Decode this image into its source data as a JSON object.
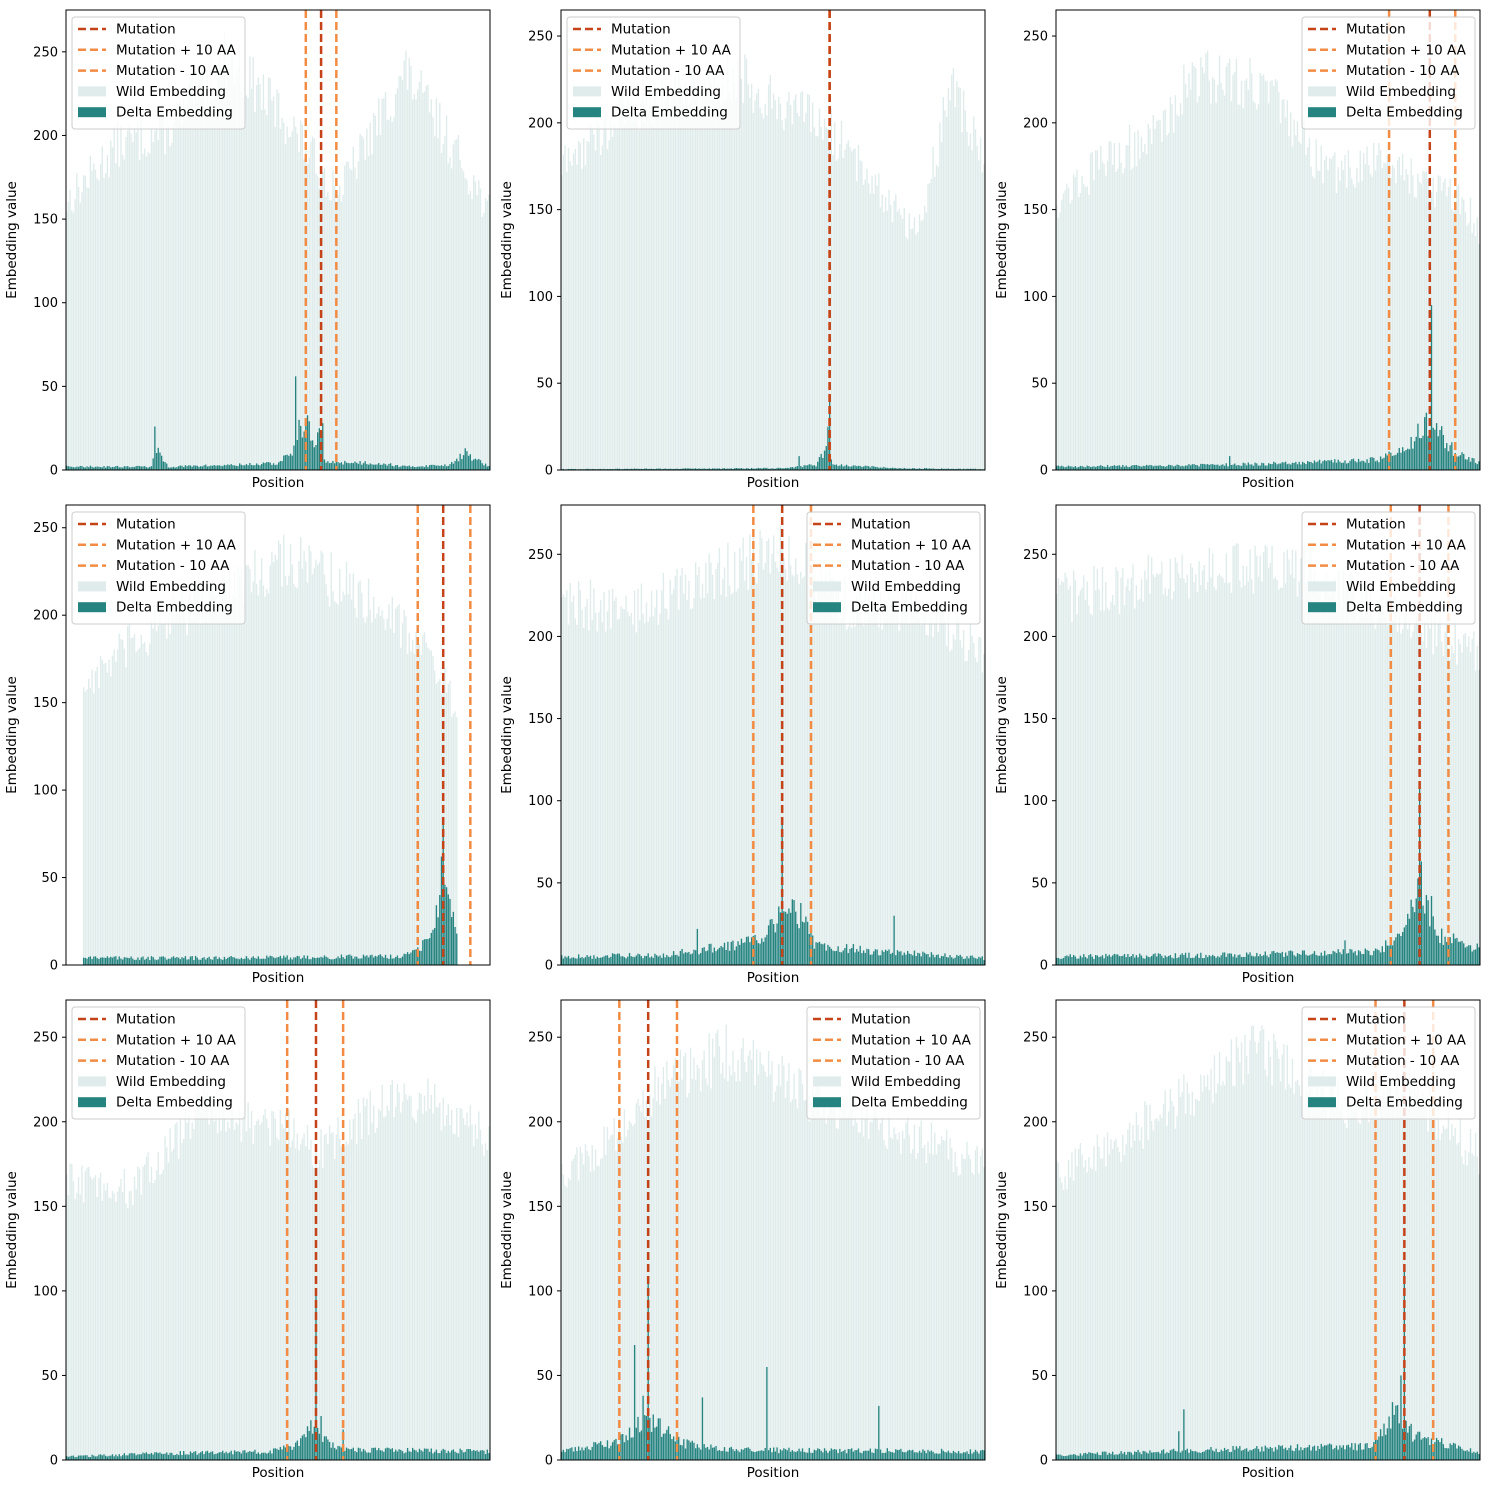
{
  "colors": {
    "wild": "#dfeceb",
    "delta": "#258380",
    "mutation": "#c44319",
    "window": "#f28c44",
    "axis": "#000000"
  },
  "chart_data": [
    {
      "type": "bar",
      "n_positions": 250,
      "xlabel": "Position",
      "ylabel": "Embedding value",
      "ylim": [
        0,
        275
      ],
      "yticks": [
        0,
        50,
        100,
        150,
        200,
        250
      ],
      "legend_position": "top-left",
      "mutation": 150,
      "window": [
        141,
        159
      ],
      "wild_profile": [
        [
          0,
          165
        ],
        [
          30,
          200
        ],
        [
          60,
          210
        ],
        [
          95,
          255
        ],
        [
          130,
          215
        ],
        [
          160,
          170
        ],
        [
          200,
          245
        ],
        [
          230,
          195
        ],
        [
          249,
          160
        ]
      ],
      "delta_profile": [
        [
          0,
          2
        ],
        [
          50,
          2
        ],
        [
          53,
          12
        ],
        [
          60,
          2
        ],
        [
          100,
          3
        ],
        [
          125,
          4
        ],
        [
          137,
          15
        ],
        [
          140,
          32
        ],
        [
          146,
          14
        ],
        [
          150,
          22
        ],
        [
          152,
          5
        ],
        [
          185,
          4
        ],
        [
          200,
          2
        ],
        [
          225,
          3
        ],
        [
          235,
          10
        ],
        [
          249,
          2
        ]
      ],
      "delta_peaks": [
        [
          135,
          56
        ],
        [
          137,
          30
        ],
        [
          149,
          25
        ],
        [
          151,
          28
        ],
        [
          52,
          26
        ]
      ],
      "legend": [
        "Mutation",
        "Mutation + 10 AA",
        "Mutation - 10 AA",
        "Wild Embedding",
        "Delta Embedding"
      ]
    },
    {
      "type": "bar",
      "n_positions": 250,
      "xlabel": "Position",
      "ylabel": "Embedding value",
      "ylim": [
        0,
        265
      ],
      "yticks": [
        0,
        50,
        100,
        150,
        200,
        250
      ],
      "legend_position": "top-left",
      "mutation": 158,
      "window": [
        158,
        158
      ],
      "wild_profile": [
        [
          0,
          180
        ],
        [
          40,
          215
        ],
        [
          100,
          235
        ],
        [
          160,
          200
        ],
        [
          210,
          140
        ],
        [
          230,
          230
        ],
        [
          249,
          180
        ]
      ],
      "delta_profile": [
        [
          0,
          0.5
        ],
        [
          130,
          1
        ],
        [
          150,
          3
        ],
        [
          156,
          12
        ],
        [
          160,
          3
        ],
        [
          200,
          1
        ],
        [
          249,
          0.5
        ]
      ],
      "delta_peaks": [
        [
          158,
          40
        ],
        [
          157,
          25
        ],
        [
          140,
          8
        ]
      ],
      "legend": [
        "Mutation",
        "Mutation + 10 AA",
        "Mutation - 10 AA",
        "Wild Embedding",
        "Delta Embedding"
      ]
    },
    {
      "type": "bar",
      "n_positions": 250,
      "xlabel": "Position",
      "ylabel": "Embedding value",
      "ylim": [
        0,
        265
      ],
      "yticks": [
        0,
        50,
        100,
        150,
        200,
        250
      ],
      "legend_position": "top-right",
      "mutation": 220,
      "window": [
        196,
        235
      ],
      "wild_profile": [
        [
          0,
          160
        ],
        [
          30,
          185
        ],
        [
          60,
          200
        ],
        [
          80,
          235
        ],
        [
          120,
          230
        ],
        [
          160,
          175
        ],
        [
          195,
          185
        ],
        [
          225,
          165
        ],
        [
          240,
          160
        ],
        [
          249,
          140
        ]
      ],
      "delta_profile": [
        [
          0,
          2
        ],
        [
          100,
          3
        ],
        [
          140,
          4
        ],
        [
          190,
          6
        ],
        [
          205,
          12
        ],
        [
          220,
          28
        ],
        [
          235,
          10
        ],
        [
          249,
          4
        ]
      ],
      "delta_peaks": [
        [
          221,
          95
        ],
        [
          218,
          33
        ],
        [
          102,
          8
        ]
      ],
      "legend": [
        "Mutation",
        "Mutation + 10 AA",
        "Mutation - 10 AA",
        "Wild Embedding",
        "Delta Embedding"
      ]
    },
    {
      "type": "bar",
      "n_positions": 250,
      "xlabel": "Position",
      "ylabel": "Embedding value",
      "ylim": [
        0,
        263
      ],
      "yticks": [
        0,
        50,
        100,
        150,
        200,
        250
      ],
      "legend_position": "top-left",
      "mutation": 222,
      "window": [
        207,
        238
      ],
      "start": 10,
      "end": 230,
      "wild_profile": [
        [
          10,
          165
        ],
        [
          40,
          190
        ],
        [
          80,
          215
        ],
        [
          130,
          240
        ],
        [
          180,
          215
        ],
        [
          210,
          190
        ],
        [
          230,
          150
        ]
      ],
      "delta_profile": [
        [
          10,
          4
        ],
        [
          100,
          4
        ],
        [
          200,
          5
        ],
        [
          210,
          12
        ],
        [
          218,
          30
        ],
        [
          222,
          60
        ],
        [
          230,
          20
        ]
      ],
      "delta_peaks": [
        [
          222,
          80
        ],
        [
          221,
          62
        ],
        [
          220,
          40
        ]
      ],
      "legend": [
        "Mutation",
        "Mutation + 10 AA",
        "Mutation - 10 AA",
        "Wild Embedding",
        "Delta Embedding"
      ]
    },
    {
      "type": "bar",
      "n_positions": 250,
      "xlabel": "Position",
      "ylabel": "Embedding value",
      "ylim": [
        0,
        280
      ],
      "yticks": [
        0,
        50,
        100,
        150,
        200,
        250
      ],
      "legend_position": "top-right",
      "mutation": 130,
      "window": [
        113,
        147
      ],
      "wild_profile": [
        [
          0,
          230
        ],
        [
          40,
          220
        ],
        [
          90,
          245
        ],
        [
          130,
          260
        ],
        [
          170,
          225
        ],
        [
          210,
          225
        ],
        [
          249,
          195
        ]
      ],
      "delta_profile": [
        [
          0,
          5
        ],
        [
          60,
          6
        ],
        [
          100,
          12
        ],
        [
          120,
          18
        ],
        [
          130,
          30
        ],
        [
          138,
          35
        ],
        [
          150,
          12
        ],
        [
          190,
          8
        ],
        [
          249,
          4
        ]
      ],
      "delta_peaks": [
        [
          130,
          87
        ],
        [
          136,
          40
        ],
        [
          80,
          22
        ],
        [
          196,
          30
        ]
      ],
      "legend": [
        "Mutation",
        "Mutation + 10 AA",
        "Mutation - 10 AA",
        "Wild Embedding",
        "Delta Embedding"
      ]
    },
    {
      "type": "bar",
      "n_positions": 250,
      "xlabel": "Position",
      "ylabel": "Embedding value",
      "ylim": [
        0,
        280
      ],
      "yticks": [
        0,
        50,
        100,
        150,
        200,
        250
      ],
      "legend_position": "top-right",
      "mutation": 214,
      "window": [
        197,
        231
      ],
      "wild_profile": [
        [
          0,
          230
        ],
        [
          50,
          240
        ],
        [
          100,
          250
        ],
        [
          150,
          245
        ],
        [
          200,
          220
        ],
        [
          249,
          195
        ]
      ],
      "delta_profile": [
        [
          0,
          5
        ],
        [
          100,
          6
        ],
        [
          190,
          8
        ],
        [
          205,
          22
        ],
        [
          214,
          45
        ],
        [
          225,
          18
        ],
        [
          249,
          10
        ]
      ],
      "delta_peaks": [
        [
          214,
          110
        ],
        [
          215,
          63
        ],
        [
          221,
          42
        ],
        [
          170,
          15
        ]
      ],
      "legend": [
        "Mutation",
        "Mutation + 10 AA",
        "Mutation - 10 AA",
        "Wild Embedding",
        "Delta Embedding"
      ]
    },
    {
      "type": "bar",
      "n_positions": 250,
      "xlabel": "Position",
      "ylabel": "Embedding value",
      "ylim": [
        0,
        272
      ],
      "yticks": [
        0,
        50,
        100,
        150,
        200,
        250
      ],
      "legend_position": "top-left",
      "mutation": 147,
      "window": [
        130,
        163
      ],
      "wild_profile": [
        [
          0,
          170
        ],
        [
          40,
          165
        ],
        [
          80,
          215
        ],
        [
          130,
          200
        ],
        [
          150,
          190
        ],
        [
          200,
          225
        ],
        [
          249,
          195
        ]
      ],
      "delta_profile": [
        [
          0,
          2
        ],
        [
          60,
          4
        ],
        [
          120,
          5
        ],
        [
          135,
          8
        ],
        [
          145,
          22
        ],
        [
          152,
          12
        ],
        [
          165,
          6
        ],
        [
          249,
          5
        ]
      ],
      "delta_peaks": [
        [
          147,
          100
        ],
        [
          150,
          26
        ],
        [
          163,
          18
        ]
      ],
      "legend": [
        "Mutation",
        "Mutation + 10 AA",
        "Mutation - 10 AA",
        "Wild Embedding",
        "Delta Embedding"
      ]
    },
    {
      "type": "bar",
      "n_positions": 250,
      "xlabel": "Position",
      "ylabel": "Embedding value",
      "ylim": [
        0,
        272
      ],
      "yticks": [
        0,
        50,
        100,
        150,
        200,
        250
      ],
      "legend_position": "top-right",
      "mutation": 51,
      "window": [
        34,
        68
      ],
      "wild_profile": [
        [
          0,
          175
        ],
        [
          30,
          195
        ],
        [
          60,
          230
        ],
        [
          100,
          250
        ],
        [
          150,
          220
        ],
        [
          200,
          200
        ],
        [
          249,
          180
        ]
      ],
      "delta_profile": [
        [
          0,
          6
        ],
        [
          30,
          10
        ],
        [
          45,
          20
        ],
        [
          55,
          22
        ],
        [
          70,
          10
        ],
        [
          100,
          6
        ],
        [
          249,
          5
        ]
      ],
      "delta_peaks": [
        [
          51,
          107
        ],
        [
          43,
          68
        ],
        [
          121,
          55
        ],
        [
          48,
          38
        ],
        [
          83,
          37
        ],
        [
          187,
          32
        ]
      ],
      "legend": [
        "Mutation",
        "Mutation + 10 AA",
        "Mutation - 10 AA",
        "Wild Embedding",
        "Delta Embedding"
      ]
    },
    {
      "type": "bar",
      "n_positions": 250,
      "xlabel": "Position",
      "ylabel": "Embedding value",
      "ylim": [
        0,
        272
      ],
      "yticks": [
        0,
        50,
        100,
        150,
        200,
        250
      ],
      "legend_position": "top-right",
      "mutation": 205,
      "window": [
        188,
        222
      ],
      "wild_profile": [
        [
          0,
          175
        ],
        [
          40,
          195
        ],
        [
          80,
          225
        ],
        [
          120,
          250
        ],
        [
          170,
          215
        ],
        [
          205,
          230
        ],
        [
          249,
          185
        ]
      ],
      "delta_profile": [
        [
          0,
          3
        ],
        [
          60,
          5
        ],
        [
          120,
          7
        ],
        [
          185,
          8
        ],
        [
          200,
          30
        ],
        [
          210,
          15
        ],
        [
          249,
          4
        ]
      ],
      "delta_peaks": [
        [
          205,
          115
        ],
        [
          203,
          50
        ],
        [
          75,
          30
        ],
        [
          72,
          17
        ]
      ],
      "legend": [
        "Mutation",
        "Mutation + 10 AA",
        "Mutation - 10 AA",
        "Wild Embedding",
        "Delta Embedding"
      ]
    }
  ]
}
